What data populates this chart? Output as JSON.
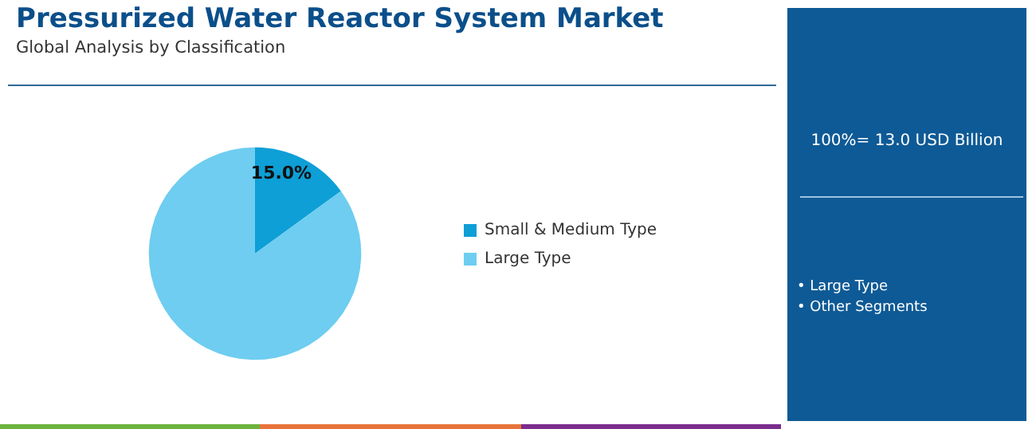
{
  "chart_data": {
    "type": "pie",
    "title": "Pressurized Water Reactor System Market",
    "subtitle": "Global Analysis by Classification",
    "categories": [
      "Small & Medium Type",
      "Large Type"
    ],
    "values": [
      15,
      85
    ],
    "colors": [
      "#0d9fd6",
      "#6ecdf0"
    ],
    "value_labels": [
      "15.0%",
      null
    ],
    "legend": "right",
    "annotations": [
      "100%= 13.0 USD Billion",
      "• Large Type",
      "• Other Segments"
    ]
  }
}
